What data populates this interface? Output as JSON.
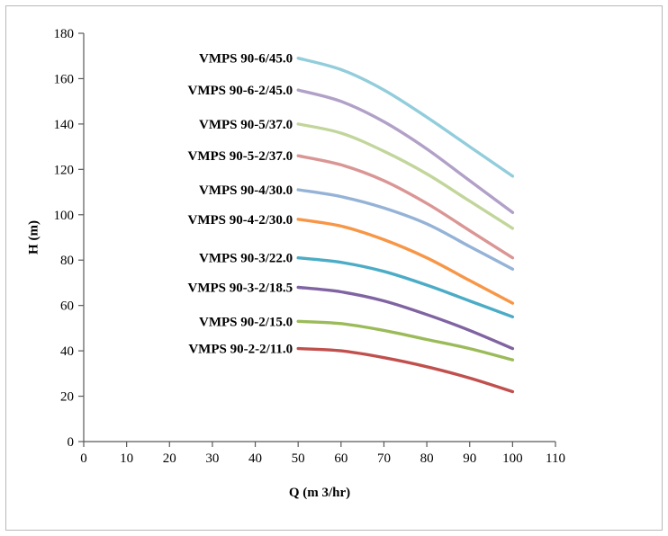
{
  "chart_data": {
    "type": "line",
    "title": "",
    "xlabel": "Q (m 3/hr)",
    "ylabel": "H (m)",
    "xlim": [
      0,
      110
    ],
    "ylim": [
      0,
      180
    ],
    "x_ticks": [
      0,
      10,
      20,
      30,
      40,
      50,
      60,
      70,
      80,
      90,
      100,
      110
    ],
    "y_ticks": [
      0,
      20,
      40,
      60,
      80,
      100,
      120,
      140,
      160,
      180
    ],
    "grid": false,
    "legend_position": "labels-left-of-curves",
    "x": [
      50,
      60,
      70,
      80,
      90,
      100
    ],
    "series": [
      {
        "name": "VMPS 90-6/45.0",
        "color": "#92CDDC",
        "values": [
          169,
          164,
          155,
          143,
          130,
          117
        ]
      },
      {
        "name": "VMPS 90-6-2/45.0",
        "color": "#B1A0C7",
        "values": [
          155,
          150,
          141,
          129,
          115,
          101
        ]
      },
      {
        "name": "VMPS 90-5/37.0",
        "color": "#C2D69B",
        "values": [
          140,
          136,
          128,
          118,
          106,
          94
        ]
      },
      {
        "name": "VMPS 90-5-2/37.0",
        "color": "#D99694",
        "values": [
          126,
          122,
          115,
          105,
          93,
          81
        ]
      },
      {
        "name": "VMPS 90-4/30.0",
        "color": "#95B3D7",
        "values": [
          111,
          108,
          103,
          96,
          86,
          76
        ]
      },
      {
        "name": "VMPS 90-4-2/30.0",
        "color": "#F79646",
        "values": [
          98,
          95,
          89,
          81,
          71,
          61
        ]
      },
      {
        "name": "VMPS 90-3/22.0",
        "color": "#4BACC6",
        "values": [
          81,
          79,
          75,
          69,
          62,
          55
        ]
      },
      {
        "name": "VMPS 90-3-2/18.5",
        "color": "#8064A2",
        "values": [
          68,
          66,
          62,
          56,
          49,
          41
        ]
      },
      {
        "name": "VMPS 90-2/15.0",
        "color": "#9BBB59",
        "values": [
          53,
          52,
          49,
          45,
          41,
          36
        ]
      },
      {
        "name": "VMPS 90-2-2/11.0",
        "color": "#C0504D",
        "values": [
          41,
          40,
          37,
          33,
          28,
          22
        ]
      }
    ],
    "axis_color": "#595959",
    "label_color": "#000000"
  }
}
